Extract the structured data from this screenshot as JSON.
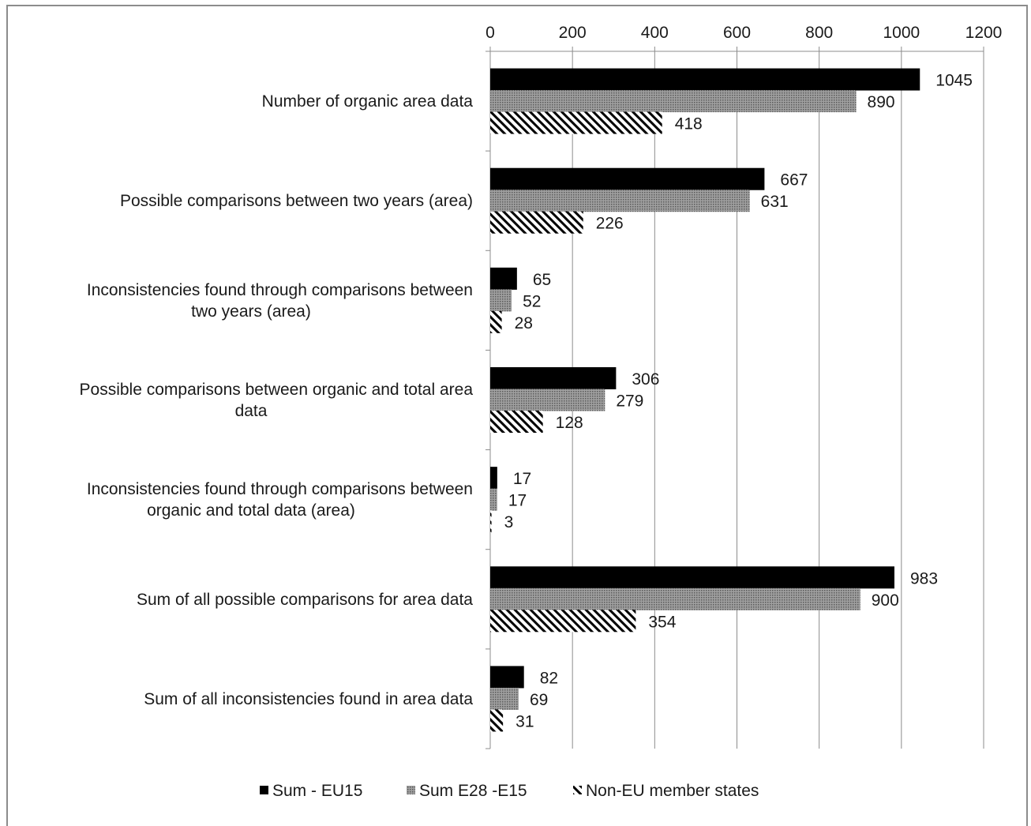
{
  "chart_data": {
    "type": "bar",
    "orientation": "horizontal",
    "categories": [
      [
        "Number of organic area data"
      ],
      [
        "Possible comparisons between two years (area)"
      ],
      [
        "Inconsistencies found through comparisons between",
        "two years (area)"
      ],
      [
        "Possible comparisons between organic and total area",
        "data"
      ],
      [
        "Inconsistencies found through comparisons between",
        "organic and total data (area)"
      ],
      [
        "Sum of all possible comparisons for area data"
      ],
      [
        "Sum of all inconsistencies found in area data"
      ]
    ],
    "series": [
      {
        "name": "Sum - EU15",
        "values": [
          1045,
          667,
          65,
          306,
          17,
          983,
          82
        ],
        "style": "solid",
        "color": "#000000"
      },
      {
        "name": "Sum E28 -E15",
        "values": [
          890,
          631,
          52,
          279,
          17,
          900,
          69
        ],
        "style": "dotted",
        "color": "#8a8a8a"
      },
      {
        "name": "Non-EU member states",
        "values": [
          418,
          226,
          28,
          128,
          3,
          354,
          31
        ],
        "style": "diagonal-hatch",
        "color": "#000000"
      }
    ],
    "xlim": [
      0,
      1200
    ],
    "xticks": [
      0,
      200,
      400,
      600,
      800,
      1000,
      1200
    ],
    "x_axis_position": "top",
    "grid": true,
    "legend_position": "bottom",
    "data_labels": true
  }
}
